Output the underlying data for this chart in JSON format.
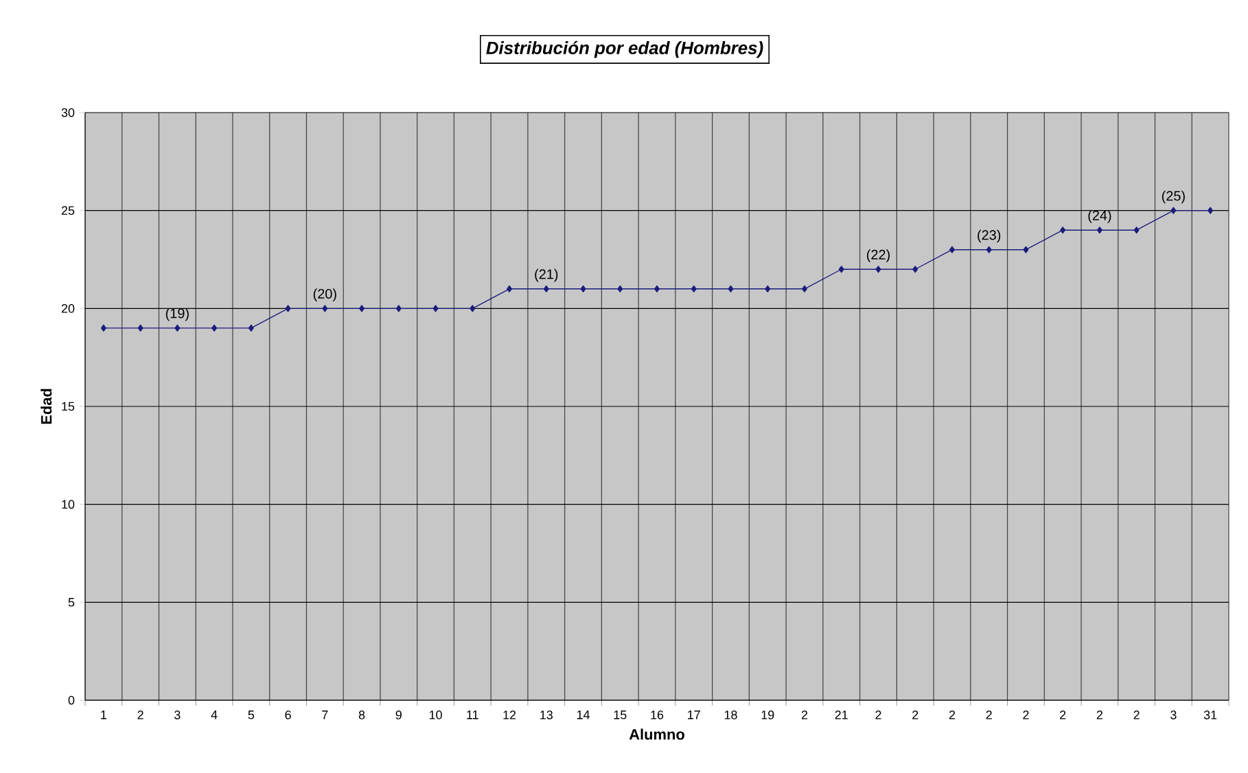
{
  "chart_data": {
    "type": "line",
    "title": "Distribución por edad (Hombres)",
    "xlabel": "Alumno",
    "ylabel": "Edad",
    "categories": [
      "1",
      "2",
      "3",
      "4",
      "5",
      "6",
      "7",
      "8",
      "9",
      "10",
      "11",
      "12",
      "13",
      "14",
      "15",
      "16",
      "17",
      "18",
      "19",
      "2",
      "21",
      "2",
      "2",
      "2",
      "2",
      "2",
      "2",
      "2",
      "2",
      "3",
      "31"
    ],
    "values": [
      19,
      19,
      19,
      19,
      19,
      20,
      20,
      20,
      20,
      20,
      20,
      21,
      21,
      21,
      21,
      21,
      21,
      21,
      21,
      21,
      22,
      22,
      22,
      23,
      23,
      23,
      24,
      24,
      24,
      25,
      25
    ],
    "value_labels": [
      null,
      null,
      "(19)",
      null,
      null,
      null,
      "(20)",
      null,
      null,
      null,
      null,
      null,
      "(21)",
      null,
      null,
      null,
      null,
      null,
      null,
      null,
      null,
      "(22)",
      null,
      null,
      "(23)",
      null,
      null,
      "(24)",
      null,
      "(25)",
      null
    ],
    "color": "#1c1c7c",
    "ylim": [
      0,
      30
    ],
    "yticks": [
      0,
      5,
      10,
      15,
      20,
      25,
      30
    ],
    "grid": true,
    "marker": "diamond",
    "line_style": "solid"
  }
}
